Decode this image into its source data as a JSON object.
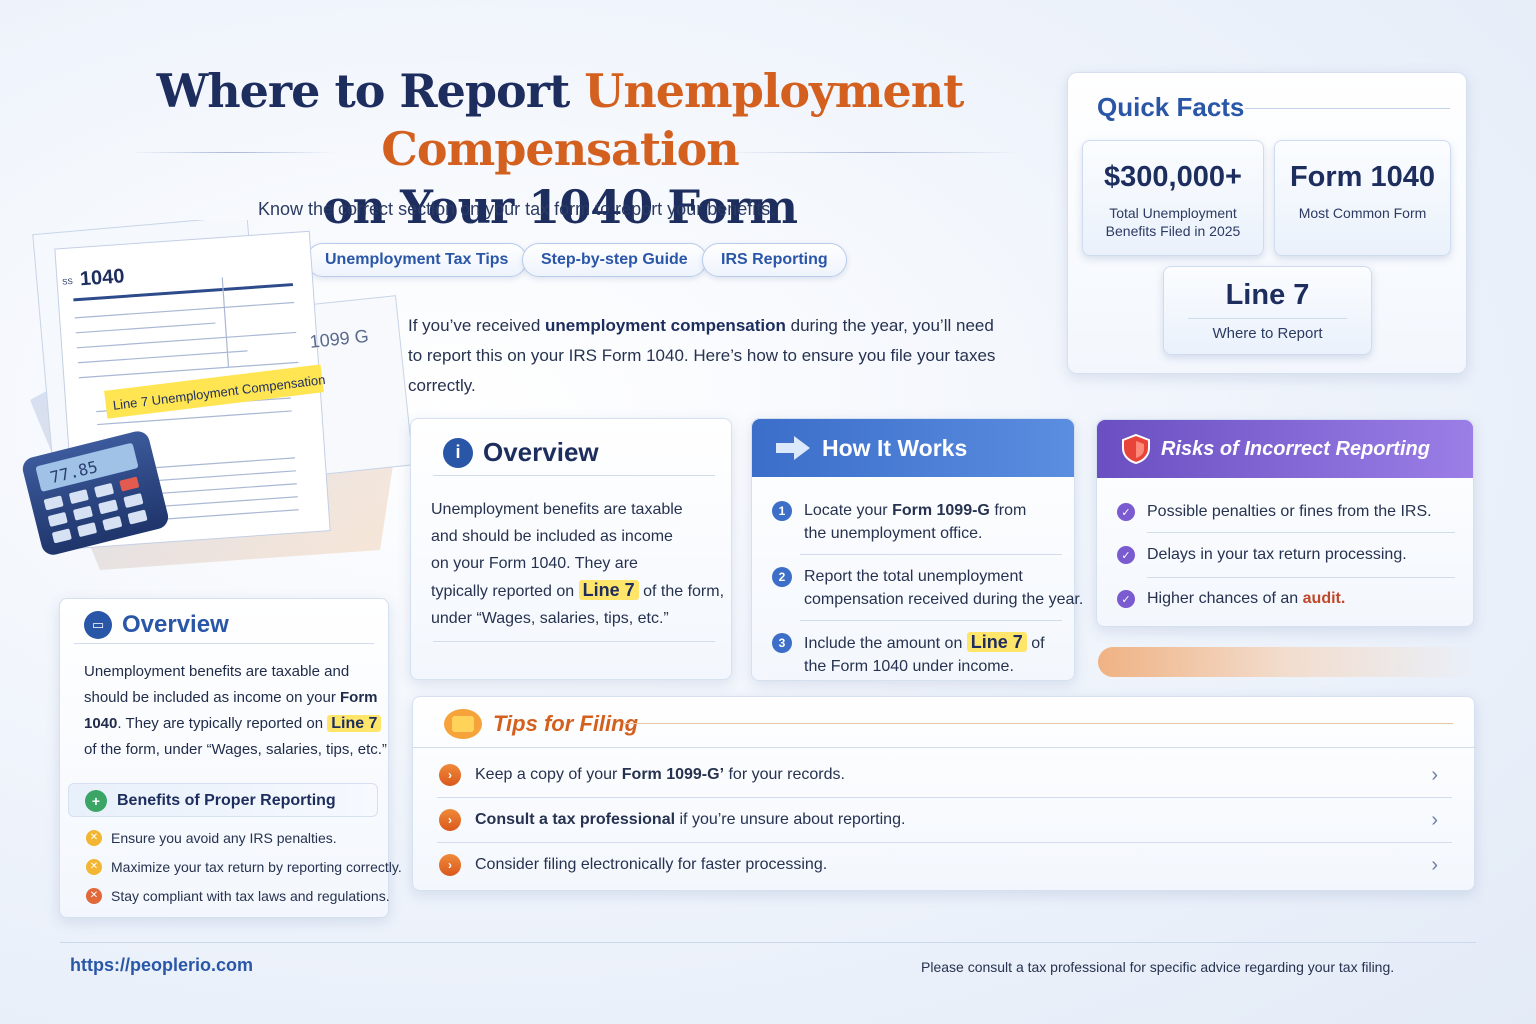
{
  "title": {
    "line1_pre": "Where to Report ",
    "line1_highlight": "Unemployment Compensation",
    "line2": "on Your 1040 Form"
  },
  "subtitle": "Know the correct section on your tax form to report your benefits.",
  "pills": [
    "Unemployment Tax Tips",
    "Step-by-step Guide",
    "IRS Reporting"
  ],
  "intro": {
    "pre": "If you’ve received ",
    "bold": "unemployment compensation",
    "post": " during the year, you’ll need to report this on your IRS Form 1040. Here’s how to ensure you file your taxes correctly."
  },
  "illustration": {
    "form_label": "1040",
    "form_tiny": "SS",
    "form2_label": "1099 G",
    "highlight_label": "Line 7  Unemployment Compensation",
    "calculator_display": "77.85"
  },
  "quick_facts": {
    "title": "Quick Facts",
    "stats": [
      {
        "value": "$300,000+",
        "label_l1": "Total Unemployment",
        "label_l2": "Benefits Filed in 2025"
      },
      {
        "value": "Form 1040",
        "label_l1": "Most Common Form"
      },
      {
        "value": "Line 7",
        "label_l1": "Where to Report"
      }
    ]
  },
  "overview_center": {
    "title": "Overview",
    "l1": "Unemployment benefits are taxable",
    "l2": "and should be included as income",
    "l3": "on your Form 1040. They are",
    "l4_pre": "typically reported on ",
    "l4_hl": "Line 7",
    "l4_post": " of the form,",
    "l5": "under “Wages, salaries, tips, etc.”"
  },
  "how_it_works": {
    "title": "How It Works",
    "steps": [
      {
        "num": "1",
        "l1_pre": "Locate your ",
        "l1_bold": "Form 1099-G",
        "l1_post": " from",
        "l2": "the unemployment office."
      },
      {
        "num": "2",
        "l1": "Report the total unemployment",
        "l2": "compensation received during the year."
      },
      {
        "num": "3",
        "l1_pre": "Include the amount on ",
        "l1_hl": "Line 7",
        "l1_post": " of",
        "l2": "the Form 1040 under income."
      }
    ]
  },
  "risks": {
    "title": "Risks of Incorrect Reporting",
    "items": [
      {
        "text": "Possible penalties or fines from the IRS."
      },
      {
        "text": "Delays in your tax return processing."
      },
      {
        "pre": "Higher chances of an ",
        "bold": "audit."
      }
    ]
  },
  "overview_left": {
    "title": "Overview",
    "l1": "Unemployment benefits are taxable and",
    "l2_pre": "should be included as income on your ",
    "l2_bold": "Form",
    "l3_bold": "1040",
    "l3_post": ". They are typically reported on ",
    "l3_hl": "Line 7",
    "l4": "of the form, under “Wages, salaries, tips, etc.”"
  },
  "benefits": {
    "title": "Benefits of Proper Reporting",
    "items": [
      {
        "text": "Ensure you avoid any IRS penalties.",
        "color": "#f2b632"
      },
      {
        "text": "Maximize your tax return by reporting correctly.",
        "color": "#f2b632"
      },
      {
        "text": "Stay compliant with tax laws and regulations.",
        "color": "#e2683a"
      }
    ]
  },
  "tips": {
    "title": "Tips for Filing",
    "items": [
      {
        "pre": "Keep a copy of your ",
        "bold": "Form 1099-G’",
        "post": " for your records."
      },
      {
        "pre": "",
        "bold": "Consult a tax professional",
        "post": " if you’re unsure about reporting."
      },
      {
        "pre": "Consider filing electronically for faster processing.",
        "bold": "",
        "post": ""
      }
    ]
  },
  "footer": {
    "url": "https://peoplerio.com",
    "disclaimer": "Please consult a tax professional for specific advice regarding your tax filing."
  },
  "colors": {
    "navy": "#1c2d5e",
    "orange": "#d4601f",
    "blue": "#2a56a8",
    "purple": "#6a4fc2"
  }
}
